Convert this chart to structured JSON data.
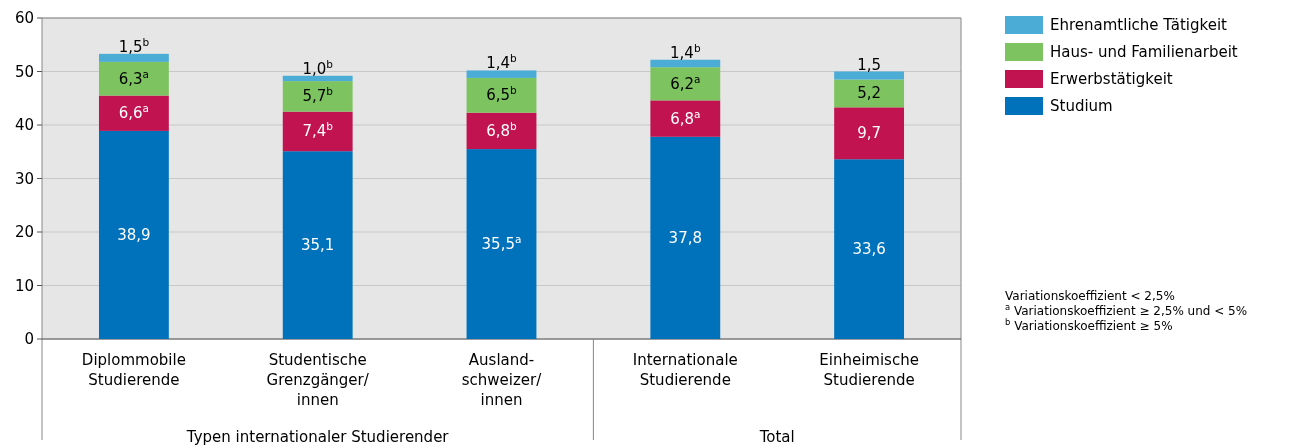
{
  "chart_data": {
    "type": "bar",
    "stacked": true,
    "categories": [
      "Diplommobile\nStudierende",
      "Studentische\nGrenzgänger/\ninnen",
      "Ausland-\nschweizer/\ninnen",
      "Internationale\nStudierende",
      "Einheimische\nStudierende"
    ],
    "series": [
      {
        "name": "Studium",
        "color": "#0072bc",
        "values": [
          38.9,
          35.1,
          35.5,
          37.8,
          33.6
        ],
        "value_labels": [
          "38,9",
          "35,1",
          "35,5$^{a}$",
          "37,8",
          "33,6"
        ]
      },
      {
        "name": "Erwerbstätigkeit",
        "color": "#c0134f",
        "values": [
          6.6,
          7.4,
          6.8,
          6.8,
          9.7
        ],
        "value_labels": [
          "6,6$^{a}$",
          "7,4$^{b}$",
          "6,8$^{b}$",
          "6,8$^{a}$",
          "9,7"
        ]
      },
      {
        "name": "Haus- und Familienarbeit",
        "color": "#7dc460",
        "values": [
          6.3,
          5.7,
          6.5,
          6.2,
          5.2
        ],
        "value_labels": [
          "6,3$^{a}$",
          "5,7$^{b}$",
          "6,5$^{b}$",
          "6,2$^{a}$",
          "5,2"
        ]
      },
      {
        "name": "Ehrenamtliche Tätigkeit",
        "color": "#4bacd6",
        "values": [
          1.5,
          1.0,
          1.4,
          1.4,
          1.5
        ],
        "value_labels": [
          "1,5$^{b}$",
          "1,0$^{b}$",
          "1,4$^{b}$",
          "1,4$^{b}$",
          "1,5"
        ]
      }
    ],
    "ylim": [
      0,
      60
    ],
    "yticks": [
      0,
      10,
      20,
      30,
      40,
      50,
      60
    ],
    "grid": "y",
    "legend": "top right",
    "annotations": [
      "Typen internationaler Studierender",
      "Total",
      "Variationskoeffizient < 2,5%",
      "$^{a}$ Variationskoeffizient ≥ 2,5% und < 5%",
      "$^{b}$ Variationskoeffizient ≥ 5%"
    ]
  }
}
